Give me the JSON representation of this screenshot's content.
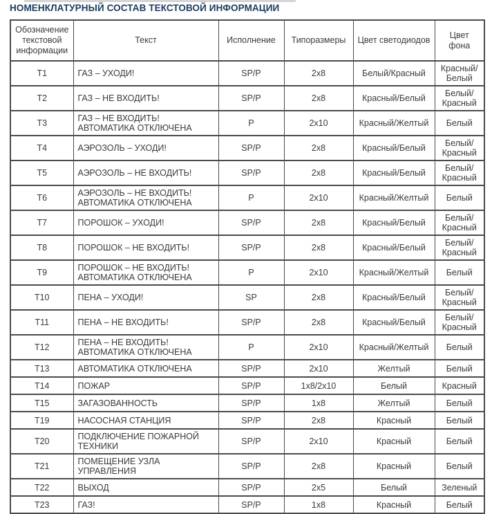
{
  "page": {
    "title": "НОМЕНКЛАТУРНЫЙ СОСТАВ ТЕКСТОВОЙ ИНФОРМАЦИИ"
  },
  "colors": {
    "title_text": "#1c3a5e",
    "body_text": "#3a3a3a",
    "table_border": "#4a4a4a",
    "page_background": "#ffffff",
    "top_strip": "#d5d5d5"
  },
  "table": {
    "headers": [
      "Обозначение текстовой информации",
      "Текст",
      "Исполнение",
      "Типоразмеры",
      "Цвет светодиодов",
      "Цвет фона"
    ],
    "rows": [
      {
        "id": "Т1",
        "text": "ГАЗ – УХОДИ!",
        "execution": "SP/P",
        "sizes": "2х8",
        "led_color": "Белый/Красный",
        "bg_color": "Красный/Белый"
      },
      {
        "id": "Т2",
        "text": "ГАЗ – НЕ ВХОДИТЬ!",
        "execution": "SP/P",
        "sizes": "2х8",
        "led_color": "Красный/Белый",
        "bg_color": "Белый/Красный"
      },
      {
        "id": "Т3",
        "text": "ГАЗ – НЕ ВХОДИТЬ! АВТОМАТИКА ОТКЛЮЧЕНА",
        "execution": "Р",
        "sizes": "2х10",
        "led_color": "Красный/Желтый",
        "bg_color": "Белый"
      },
      {
        "id": "Т4",
        "text": "АЭРОЗОЛЬ – УХОДИ!",
        "execution": "SP/P",
        "sizes": "2х8",
        "led_color": "Красный/Белый",
        "bg_color": "Белый/Красный"
      },
      {
        "id": "Т5",
        "text": "АЭРОЗОЛЬ – НЕ ВХОДИТЬ!",
        "execution": "SP/P",
        "sizes": "2х8",
        "led_color": "Красный/Белый",
        "bg_color": "Белый/Красный"
      },
      {
        "id": "Т6",
        "text": "АЭРОЗОЛЬ – НЕ ВХОДИТЬ! АВТОМАТИКА ОТКЛЮЧЕНА",
        "execution": "Р",
        "sizes": "2х10",
        "led_color": "Красный/Желтый",
        "bg_color": "Белый"
      },
      {
        "id": "Т7",
        "text": "ПОРОШОК – УХОДИ!",
        "execution": "SP/P",
        "sizes": "2х8",
        "led_color": "Красный/Белый",
        "bg_color": "Белый/Красный"
      },
      {
        "id": "Т8",
        "text": "ПОРОШОК – НЕ ВХОДИТЬ!",
        "execution": "SP/P",
        "sizes": "2х8",
        "led_color": "Красный/Белый",
        "bg_color": "Белый/Красный"
      },
      {
        "id": "Т9",
        "text": "ПОРОШОК – НЕ ВХОДИТЬ! АВТОМАТИКА ОТКЛЮЧЕНА",
        "execution": "Р",
        "sizes": "2х10",
        "led_color": "Красный/Желтый",
        "bg_color": "Белый"
      },
      {
        "id": "Т10",
        "text": "ПЕНА – УХОДИ!",
        "execution": "SP",
        "sizes": "2х8",
        "led_color": "Красный/Белый",
        "bg_color": "Белый/Красный"
      },
      {
        "id": "Т11",
        "text": "ПЕНА – НЕ ВХОДИТЬ!",
        "execution": "SP/P",
        "sizes": "2х8",
        "led_color": "Красный/Белый",
        "bg_color": "Белый/Красный"
      },
      {
        "id": "Т12",
        "text": "ПЕНА – НЕ ВХОДИТЬ! АВТОМАТИКА ОТКЛЮЧЕНА",
        "execution": "Р",
        "sizes": "2х10",
        "led_color": "Красный/Желтый",
        "bg_color": "Белый"
      },
      {
        "id": "Т13",
        "text": "АВТОМАТИКА ОТКЛЮЧЕНА",
        "execution": "SP/P",
        "sizes": "2х10",
        "led_color": "Желтый",
        "bg_color": "Белый"
      },
      {
        "id": "Т14",
        "text": "ПОЖАР",
        "execution": "SP/P",
        "sizes": "1х8/2х10",
        "led_color": "Белый",
        "bg_color": "Красный"
      },
      {
        "id": "Т15",
        "text": "ЗАГАЗОВАННОСТЬ",
        "execution": "SP/P",
        "sizes": "1х8",
        "led_color": "Желтый",
        "bg_color": "Белый"
      },
      {
        "id": "Т19",
        "text": "НАСОСНАЯ СТАНЦИЯ",
        "execution": "SP/P",
        "sizes": "2х8",
        "led_color": "Красный",
        "bg_color": "Белый"
      },
      {
        "id": "Т20",
        "text": "ПОДКЛЮЧЕНИЕ ПОЖАРНОЙ ТЕХНИКИ",
        "execution": "SP/P",
        "sizes": "2х10",
        "led_color": "Красный",
        "bg_color": "Белый"
      },
      {
        "id": "Т21",
        "text": "ПОМЕЩЕНИЕ УЗЛА УПРАВЛЕНИЯ",
        "execution": "SP/P",
        "sizes": "2х8",
        "led_color": "Красный",
        "bg_color": "Белый"
      },
      {
        "id": "Т22",
        "text": "ВЫХОД",
        "execution": "SP/P",
        "sizes": "2х5",
        "led_color": "Белый",
        "bg_color": "Зеленый"
      },
      {
        "id": "Т23",
        "text": "ГАЗ!",
        "execution": "SP/P",
        "sizes": "1х8",
        "led_color": "Красный",
        "bg_color": "Белый"
      }
    ]
  }
}
